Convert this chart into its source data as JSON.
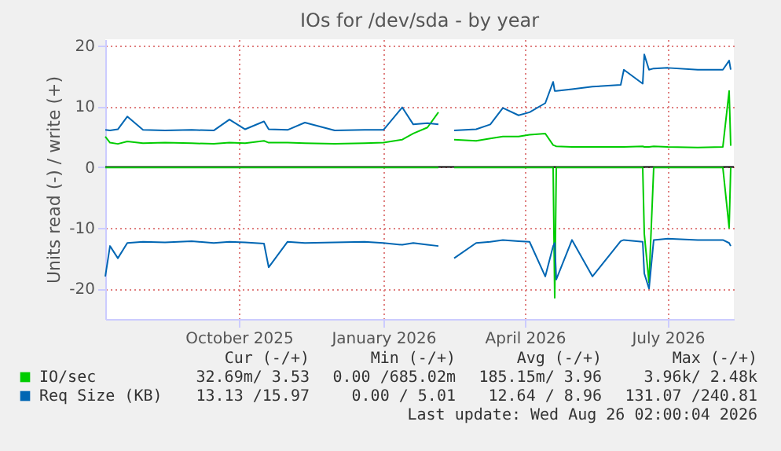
{
  "chart_data": {
    "type": "line",
    "title": "IOs for /dev/sda - by year",
    "ylabel": "Units read (-) / write (+)",
    "x": [
      "2025-07-08",
      "2025-07-11",
      "2025-07-16",
      "2025-07-22",
      "2025-08-01",
      "2025-08-15",
      "2025-09-01",
      "2025-09-15",
      "2025-09-25",
      "2025-10-05",
      "2025-10-17",
      "2025-10-20",
      "2025-11-01",
      "2025-11-12",
      "2025-12-01",
      "2025-12-20",
      "2026-01-01",
      "2026-01-13",
      "2026-01-20",
      "2026-01-29",
      "2026-02-05",
      "2026-02-10",
      "2026-02-15",
      "2026-03-01",
      "2026-03-10",
      "2026-03-18",
      "2026-03-28",
      "2026-04-04",
      "2026-04-14",
      "2026-04-19",
      "2026-04-20",
      "2026-04-21",
      "2026-05-01",
      "2026-05-14",
      "2026-06-01",
      "2026-06-03",
      "2026-06-15",
      "2026-06-16",
      "2026-06-19",
      "2026-06-22",
      "2026-07-01",
      "2026-07-20",
      "2026-08-05",
      "2026-08-09",
      "2026-08-10"
    ],
    "series": [
      {
        "name": "IO/sec",
        "color": "#00cc00",
        "values": [
          5,
          4,
          3.8,
          4.2,
          3.9,
          4,
          3.9,
          3.8,
          4,
          3.9,
          4.3,
          4,
          4,
          3.9,
          3.8,
          3.9,
          4,
          4.5,
          5.5,
          6.5,
          9,
          null,
          4.5,
          4.3,
          4.7,
          5,
          5,
          5.3,
          5.5,
          3.6,
          3.5,
          3.4,
          3.3,
          3.3,
          3.3,
          3.3,
          3.4,
          3.3,
          3.3,
          3.4,
          3.3,
          3.2,
          3.3,
          12.5,
          3.5
        ]
      },
      {
        "color": "#00cc00",
        "values": [
          -0.1,
          -0.1,
          -0.1,
          -0.1,
          -0.1,
          -0.1,
          -0.1,
          -0.1,
          -0.1,
          -0.1,
          -0.1,
          -0.1,
          -0.1,
          -0.1,
          -0.1,
          -0.1,
          -0.1,
          -0.1,
          -0.1,
          -0.1,
          -0.1,
          null,
          -0.1,
          -0.1,
          -0.1,
          -0.1,
          -0.1,
          -0.1,
          -0.1,
          -0.1,
          -21.5,
          -0.1,
          -0.1,
          -0.1,
          -0.1,
          -0.1,
          -0.1,
          -11,
          -19,
          -0.1,
          -0.1,
          -0.1,
          -0.1,
          -10,
          -0.1
        ]
      },
      {
        "name": "Req Size (KB)",
        "color": "#0066b3",
        "values": [
          6.1,
          6.0,
          6.2,
          8.3,
          6.1,
          6.0,
          6.1,
          6.0,
          7.8,
          6.2,
          7.5,
          6.2,
          6.1,
          7.3,
          6.0,
          6.1,
          6.1,
          9.8,
          7.0,
          7.2,
          7.0,
          null,
          6.0,
          6.2,
          7.0,
          9.7,
          8.5,
          9.0,
          10.5,
          14,
          12.5,
          12.5,
          12.8,
          13.2,
          13.5,
          16,
          13.7,
          18.5,
          16,
          16.2,
          16.3,
          16,
          16,
          17.5,
          16
        ]
      },
      {
        "color": "#0066b3",
        "values": [
          -18,
          -13,
          -15,
          -12.5,
          -12.3,
          -12.4,
          -12.2,
          -12.5,
          -12.3,
          -12.4,
          -12.6,
          -16.5,
          -12.3,
          -12.5,
          -12.4,
          -12.3,
          -12.5,
          -12.8,
          -12.5,
          -12.8,
          -13,
          null,
          -15,
          -12.5,
          -12.3,
          -12,
          -12.2,
          -12.3,
          -18,
          -13,
          -12.5,
          -18.5,
          -12,
          -18,
          -12.2,
          -12,
          -12.3,
          -17.5,
          -20,
          -12,
          -11.8,
          -12,
          -12,
          -12.5,
          -13
        ]
      }
    ],
    "xlim": [
      "2025-07-08",
      "2026-08-12"
    ],
    "xticks": [
      {
        "value": "2025-10-01",
        "label": "October 2025"
      },
      {
        "value": "2026-01-01",
        "label": "January 2026"
      },
      {
        "value": "2026-04-01",
        "label": "April 2026"
      },
      {
        "value": "2026-07-01",
        "label": "July 2026"
      }
    ],
    "ylim": [
      -25,
      21
    ],
    "yticks": [
      -20,
      -10,
      0,
      10,
      20
    ],
    "grid": true,
    "legend": "bottom",
    "ref_lines": [
      {
        "axis": "y",
        "value": 0,
        "color": "#000000"
      }
    ],
    "annotations": [
      "Cur (-/+)",
      "Min (-/+)",
      "Avg (-/+)",
      "Max (-/+)",
      "32.69m/ 3.53",
      "0.00 /685.02m",
      "185.15m/ 3.96",
      "3.96k/ 2.48k",
      "13.13 /15.97",
      "0.00 / 5.01",
      "12.64 / 8.96",
      "131.07 /240.81",
      "Last update: Wed Aug 26 02:00:04 2026"
    ]
  }
}
